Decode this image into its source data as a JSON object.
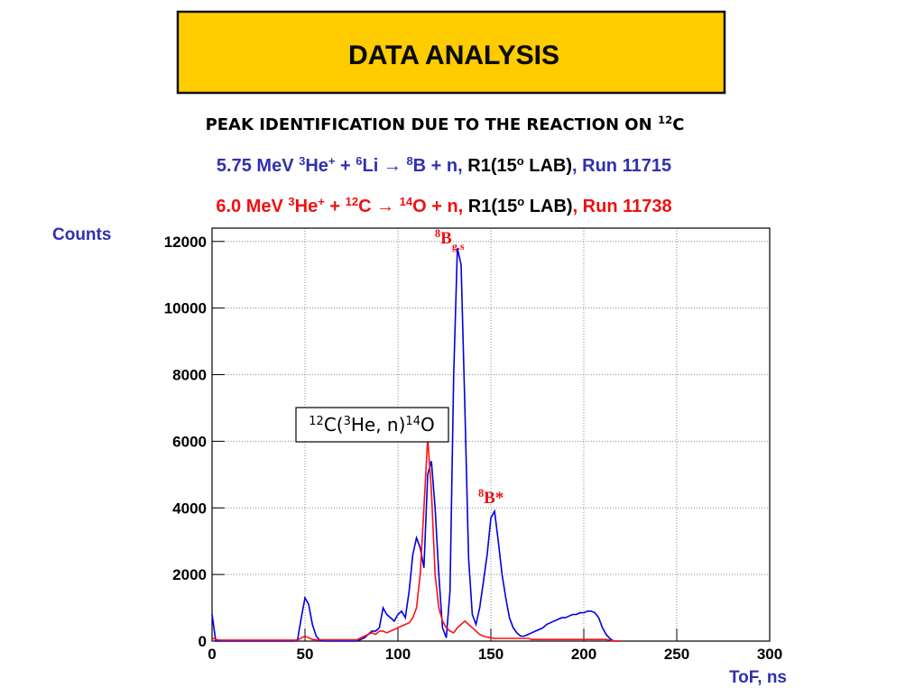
{
  "slide": {
    "title": "DATA ANALYSIS",
    "subtitle": [
      "PEAK IDENTIFICATION DUE TO THE REACTION ON ",
      "12",
      "C"
    ],
    "line1": [
      "5.75 MeV ",
      "3",
      "He",
      "+",
      " + ",
      "6",
      "Li ",
      "→",
      " ",
      "8",
      "B + n, ",
      "R1(15",
      "o",
      " LAB)",
      ", Run 11715"
    ],
    "line2": [
      "6.0 MeV ",
      "3",
      "He",
      "+",
      " + ",
      "12",
      "C ",
      "→",
      " ",
      "14",
      "O + n, ",
      "R1(15",
      "o",
      " LAB)",
      ", Run 11738"
    ]
  },
  "chart_data": {
    "type": "line",
    "ylabel": "Counts",
    "xlabel": "ToF, ns",
    "annotations": {
      "gs": [
        "8",
        "B",
        "g.s"
      ],
      "excited": [
        "8",
        "B*"
      ],
      "reaction": [
        "12",
        "C(",
        "3",
        "He, n)",
        "14",
        "O"
      ]
    },
    "xlim": [
      0,
      300
    ],
    "xticks": [
      0,
      50,
      100,
      150,
      200,
      250,
      300
    ],
    "ylim": [
      0,
      12400
    ],
    "yticks": [
      0,
      2000,
      4000,
      6000,
      8000,
      10000,
      12000
    ],
    "grid": true,
    "x": [
      0,
      2,
      4,
      6,
      8,
      10,
      12,
      14,
      16,
      18,
      20,
      22,
      24,
      26,
      28,
      30,
      32,
      34,
      36,
      38,
      40,
      42,
      44,
      46,
      48,
      50,
      52,
      54,
      56,
      58,
      60,
      62,
      64,
      66,
      68,
      70,
      72,
      74,
      76,
      78,
      80,
      82,
      84,
      86,
      88,
      90,
      92,
      94,
      96,
      98,
      100,
      102,
      104,
      106,
      108,
      110,
      112,
      114,
      116,
      118,
      120,
      122,
      124,
      126,
      128,
      130,
      132,
      134,
      136,
      138,
      140,
      142,
      144,
      146,
      148,
      150,
      152,
      154,
      156,
      158,
      160,
      162,
      164,
      166,
      168,
      170,
      172,
      174,
      176,
      178,
      180,
      182,
      184,
      186,
      188,
      190,
      192,
      194,
      196,
      198,
      200,
      202,
      204,
      206,
      208,
      210,
      212,
      214,
      216,
      218,
      220
    ],
    "series": [
      {
        "name": "Run 11715",
        "color": "#0000e0",
        "values": [
          800,
          0,
          0,
          0,
          0,
          0,
          0,
          0,
          0,
          0,
          0,
          0,
          0,
          0,
          0,
          0,
          0,
          0,
          0,
          0,
          0,
          0,
          0,
          50,
          700,
          1300,
          1100,
          500,
          150,
          30,
          0,
          0,
          0,
          0,
          0,
          0,
          0,
          0,
          0,
          0,
          50,
          100,
          200,
          300,
          300,
          400,
          1000,
          800,
          700,
          600,
          800,
          900,
          700,
          1500,
          2600,
          3100,
          2800,
          2200,
          5000,
          5400,
          4000,
          2000,
          400,
          100,
          1500,
          8000,
          11800,
          11300,
          7000,
          2500,
          800,
          500,
          1000,
          1800,
          2600,
          3700,
          3900,
          3000,
          2000,
          1300,
          700,
          400,
          250,
          150,
          150,
          200,
          250,
          300,
          350,
          400,
          500,
          550,
          600,
          650,
          700,
          700,
          750,
          800,
          800,
          850,
          850,
          900,
          900,
          850,
          700,
          400,
          200,
          80,
          0,
          0,
          0
        ]
      },
      {
        "name": "Run 11738",
        "color": "#ff1010",
        "values": [
          100,
          50,
          30,
          30,
          30,
          30,
          30,
          30,
          30,
          30,
          30,
          30,
          30,
          30,
          30,
          30,
          30,
          30,
          30,
          30,
          30,
          30,
          30,
          30,
          100,
          150,
          100,
          50,
          40,
          40,
          40,
          40,
          40,
          40,
          40,
          40,
          40,
          40,
          40,
          40,
          100,
          150,
          200,
          250,
          200,
          300,
          300,
          250,
          300,
          350,
          400,
          450,
          500,
          550,
          700,
          1000,
          2000,
          4000,
          6100,
          4500,
          2000,
          1000,
          600,
          400,
          300,
          250,
          400,
          500,
          600,
          500,
          400,
          300,
          200,
          150,
          120,
          100,
          80,
          80,
          80,
          80,
          80,
          80,
          80,
          80,
          80,
          80,
          50,
          50,
          50,
          50,
          50,
          50,
          50,
          50,
          50,
          50,
          50,
          50,
          50,
          50,
          50,
          50,
          50,
          50,
          50,
          50,
          50,
          30,
          0,
          0,
          0
        ]
      }
    ]
  }
}
